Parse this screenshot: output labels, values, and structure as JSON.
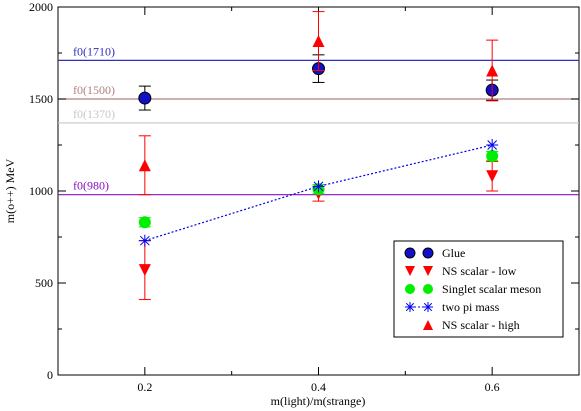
{
  "chart_data": {
    "type": "scatter",
    "xlabel": "m(light)/m(strange)",
    "ylabel": "m(o++)  MeV",
    "xlim": [
      0.1,
      0.7
    ],
    "ylim": [
      0,
      2000
    ],
    "x_ticks": [
      0.2,
      0.4,
      0.6
    ],
    "y_ticks": [
      0,
      500,
      1000,
      1500,
      2000
    ],
    "x_tick_labels": [
      "0.2",
      "0.4",
      "0.6"
    ],
    "y_tick_labels": [
      "0",
      "500",
      "1000",
      "1500",
      "2000"
    ],
    "grid": false,
    "legend_position": "bottom-right",
    "reference_lines": [
      {
        "label": "f0(1710)",
        "y": 1710,
        "color": "#3030c0"
      },
      {
        "label": "f0(1500)",
        "y": 1500,
        "color": "#b08080"
      },
      {
        "label": "f0(1370)",
        "y": 1370,
        "color": "#c8c8c8"
      },
      {
        "label": "f0(980)",
        "y": 980,
        "color": "#8a10c0"
      }
    ],
    "series": [
      {
        "name": "Glue",
        "marker": "circle",
        "color": "#1010c8",
        "errcolor": "#000000",
        "x": [
          0.2,
          0.4,
          0.6
        ],
        "y": [
          1505,
          1665,
          1548
        ],
        "err": [
          65,
          75,
          55
        ]
      },
      {
        "name": "NS scalar - low",
        "marker": "triangle-down",
        "color": "#ff0000",
        "errcolor": "#ff0000",
        "x": [
          0.2,
          0.4,
          0.6
        ],
        "y": [
          570,
          985,
          1080
        ],
        "err": [
          160,
          40,
          80
        ]
      },
      {
        "name": "Singlet scalar meson",
        "marker": "circle",
        "color": "#00ee00",
        "errcolor": "#00ee00",
        "x": [
          0.2,
          0.4,
          0.6
        ],
        "y": [
          830,
          1010,
          1190
        ],
        "err": [
          25,
          25,
          25
        ]
      },
      {
        "name": "two pi mass",
        "marker": "asterisk",
        "color": "#0000ee",
        "errcolor": "#0000ee",
        "x": [
          0.2,
          0.4,
          0.6
        ],
        "y": [
          730,
          1025,
          1250
        ],
        "err": [
          0,
          0,
          0
        ],
        "line": true
      },
      {
        "name": "NS scalar - high",
        "marker": "triangle-up",
        "color": "#ff0000",
        "errcolor": "#ff0000",
        "x": [
          0.2,
          0.4,
          0.6
        ],
        "y": [
          1140,
          1815,
          1655
        ],
        "err": [
          160,
          160,
          165
        ]
      }
    ]
  }
}
